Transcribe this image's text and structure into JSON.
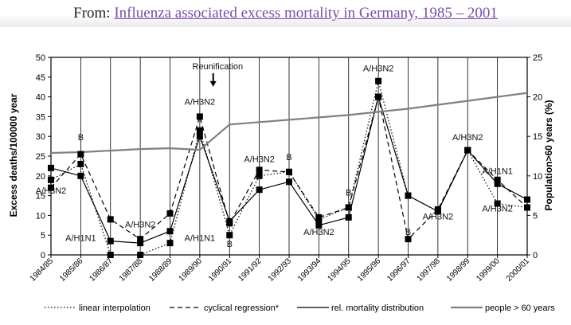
{
  "header": {
    "prefix": "From:",
    "link_text": "Influenza associated excess mortality in Germany, 1985 – 2001"
  },
  "chart_data": {
    "type": "line",
    "title": "",
    "xlabel": "",
    "ylabel": "Excess deaths/100000 year",
    "y2label": "Population>60 years (%)",
    "ylim": [
      0,
      50
    ],
    "yticks": [
      0,
      5,
      10,
      15,
      20,
      25,
      30,
      35,
      40,
      45,
      50
    ],
    "y2lim": [
      0,
      25
    ],
    "y2ticks": [
      0,
      5,
      10,
      15,
      20,
      25
    ],
    "grid": false,
    "legend_position": "bottom",
    "categories": [
      "1984/85",
      "1985/86",
      "1986/87",
      "1987/88",
      "1988/89",
      "1989/90",
      "1990/91",
      "1991/92",
      "1992/93",
      "1993/94",
      "1994/95",
      "1995/96",
      "1996/97",
      "1997/98",
      "1998/99",
      "1999/00",
      "2000/01"
    ],
    "series": [
      {
        "name": "linear interpolation",
        "style": "dotted",
        "axis": "left",
        "values": [
          19,
          23,
          0,
          0,
          3,
          31.5,
          5,
          20,
          21,
          9,
          12,
          44,
          15,
          11,
          26.5,
          13,
          12
        ]
      },
      {
        "name": "cyclical regression*",
        "style": "dashed",
        "axis": "left",
        "values": [
          17,
          25.5,
          9,
          4,
          10.5,
          35,
          8,
          21.5,
          21,
          9.5,
          12,
          40,
          4,
          11.5,
          26.5,
          19,
          12
        ]
      },
      {
        "name": "rel. mortality distribution",
        "style": "solid",
        "axis": "left",
        "values": [
          22,
          20,
          3.5,
          3,
          6,
          30,
          8.5,
          16.5,
          18.5,
          7.5,
          9.5,
          40,
          15,
          11,
          26.5,
          18,
          14
        ]
      },
      {
        "name": "people > 60 years",
        "style": "thick-gray",
        "axis": "right",
        "values": [
          12.9,
          13.0,
          13.2,
          13.4,
          13.5,
          13.3,
          16.5,
          16.8,
          17.1,
          17.4,
          17.7,
          18.1,
          18.5,
          19.0,
          19.5,
          20.0,
          20.5
        ]
      }
    ],
    "annotations": [
      {
        "text": "Reunification",
        "category": "1989/90",
        "y": 47
      },
      {
        "text": "A/H3N2",
        "category": "1984/85",
        "y": 15.5
      },
      {
        "text": "B",
        "category": "1985/86",
        "y": 29
      },
      {
        "text": "A/H1N1",
        "category": "1985/86",
        "y": 3.5
      },
      {
        "text": "A/H3N2",
        "category": "1987/88",
        "y": 7
      },
      {
        "text": "A/H1N1",
        "category": "1989/90",
        "y": 3.5
      },
      {
        "text": "A/H3N2",
        "category": "1989/90",
        "y": 38
      },
      {
        "text": "B",
        "category": "1990/91",
        "y": 2
      },
      {
        "text": "A/H3N2",
        "category": "1991/92",
        "y": 23.5
      },
      {
        "text": "B",
        "category": "1992/93",
        "y": 24
      },
      {
        "text": "A/H3N2",
        "category": "1993/94",
        "y": 5
      },
      {
        "text": "B",
        "category": "1994/95",
        "y": 15
      },
      {
        "text": "A/H3N2",
        "category": "1995/96",
        "y": 46.5
      },
      {
        "text": "B",
        "category": "1996/97",
        "y": 5
      },
      {
        "text": "A/H3N2",
        "category": "1997/98",
        "y": 9
      },
      {
        "text": "A/H3N2",
        "category": "1998/99",
        "y": 29
      },
      {
        "text": "A/H1N1",
        "category": "1999/00",
        "y": 20.5
      },
      {
        "text": "A/H3N2",
        "category": "1999/00",
        "y": 11
      }
    ],
    "colors": {
      "primary": "#000000",
      "population": "#808080"
    }
  }
}
